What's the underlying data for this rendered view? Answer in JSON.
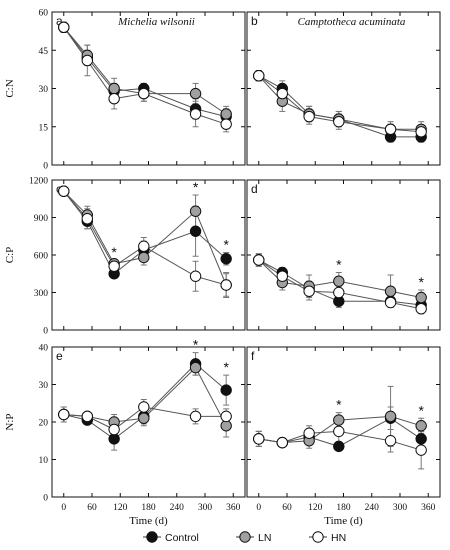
{
  "chart_data": [
    {
      "type": "line",
      "panel_letter": "a",
      "title": "Michelia wilsonii",
      "ylabel": "C:N",
      "xlabel": "",
      "ylim": [
        0,
        60
      ],
      "yticks": [
        0,
        15,
        30,
        45,
        60
      ],
      "xticks": [
        0,
        60,
        120,
        180,
        240,
        300,
        360
      ],
      "series": [
        {
          "name": "Control",
          "x": [
            0,
            50,
            107,
            170,
            280,
            345
          ],
          "y": [
            54,
            42,
            29,
            30,
            22,
            19
          ],
          "err": [
            2,
            3,
            3,
            2,
            4,
            3
          ]
        },
        {
          "name": "LN",
          "x": [
            0,
            50,
            107,
            170,
            280,
            345
          ],
          "y": [
            54,
            43,
            30,
            28,
            28,
            20
          ],
          "err": [
            2,
            4,
            4,
            3,
            4,
            3
          ]
        },
        {
          "name": "HN",
          "x": [
            0,
            50,
            107,
            170,
            280,
            345
          ],
          "y": [
            54,
            41,
            26,
            28,
            20,
            16
          ],
          "err": [
            2,
            6,
            4,
            3,
            5,
            3
          ]
        }
      ],
      "asterisks": []
    },
    {
      "type": "line",
      "panel_letter": "b",
      "title": "Camptotheca acuminata",
      "ylabel": "",
      "xlabel": "",
      "ylim": [
        0,
        60
      ],
      "yticks": [
        0,
        15,
        30,
        45,
        60
      ],
      "xticks": [
        0,
        60,
        120,
        180,
        240,
        300,
        360
      ],
      "series": [
        {
          "name": "Control",
          "x": [
            0,
            50,
            107,
            170,
            280,
            345
          ],
          "y": [
            35,
            30,
            20,
            18,
            11,
            11
          ],
          "err": [
            2,
            3,
            3,
            3,
            2,
            2
          ]
        },
        {
          "name": "LN",
          "x": [
            0,
            50,
            107,
            170,
            280,
            345
          ],
          "y": [
            35,
            25,
            20,
            18,
            14,
            14
          ],
          "err": [
            2,
            4,
            3,
            3,
            3,
            3
          ]
        },
        {
          "name": "HN",
          "x": [
            0,
            50,
            107,
            170,
            280,
            345
          ],
          "y": [
            35,
            28,
            19,
            17,
            14,
            13
          ],
          "err": [
            2,
            3,
            3,
            3,
            2,
            2
          ]
        }
      ],
      "asterisks": []
    },
    {
      "type": "line",
      "panel_letter": "c",
      "title": "",
      "ylabel": "C:P",
      "xlabel": "",
      "ylim": [
        0,
        1200
      ],
      "yticks": [
        0,
        300,
        600,
        900,
        1200
      ],
      "xticks": [
        0,
        60,
        120,
        180,
        240,
        300,
        360
      ],
      "series": [
        {
          "name": "Control",
          "x": [
            0,
            50,
            107,
            170,
            280,
            345
          ],
          "y": [
            1110,
            870,
            450,
            640,
            790,
            570
          ],
          "err": [
            30,
            60,
            30,
            70,
            200,
            50
          ]
        },
        {
          "name": "LN",
          "x": [
            0,
            50,
            107,
            170,
            280,
            345
          ],
          "y": [
            1110,
            920,
            530,
            580,
            950,
            360
          ],
          "err": [
            30,
            70,
            30,
            60,
            130,
            100
          ]
        },
        {
          "name": "HN",
          "x": [
            0,
            50,
            107,
            170,
            280,
            345
          ],
          "y": [
            1110,
            890,
            510,
            670,
            430,
            360
          ],
          "err": [
            30,
            80,
            30,
            70,
            120,
            90
          ]
        }
      ],
      "asterisks": [
        {
          "x": 107,
          "label": "*"
        },
        {
          "x": 280,
          "label": "*"
        },
        {
          "x": 345,
          "label": "*"
        }
      ]
    },
    {
      "type": "line",
      "panel_letter": "d",
      "title": "",
      "ylabel": "",
      "xlabel": "",
      "ylim": [
        0,
        1200
      ],
      "yticks": [
        0,
        300,
        600,
        900,
        1200
      ],
      "xticks": [
        0,
        60,
        120,
        180,
        240,
        300,
        360
      ],
      "series": [
        {
          "name": "Control",
          "x": [
            0,
            50,
            107,
            170,
            280,
            345
          ],
          "y": [
            560,
            460,
            330,
            230,
            230,
            200
          ],
          "err": [
            50,
            40,
            60,
            50,
            40,
            30
          ]
        },
        {
          "name": "LN",
          "x": [
            0,
            50,
            107,
            170,
            280,
            345
          ],
          "y": [
            560,
            380,
            350,
            390,
            310,
            260
          ],
          "err": [
            50,
            60,
            90,
            70,
            130,
            60
          ]
        },
        {
          "name": "HN",
          "x": [
            0,
            50,
            107,
            170,
            280,
            345
          ],
          "y": [
            560,
            430,
            310,
            300,
            220,
            170
          ],
          "err": [
            50,
            50,
            70,
            50,
            40,
            40
          ]
        }
      ],
      "asterisks": [
        {
          "x": 170,
          "label": "*"
        },
        {
          "x": 345,
          "label": "*"
        }
      ]
    },
    {
      "type": "line",
      "panel_letter": "e",
      "title": "",
      "ylabel": "N:P",
      "xlabel": "Time (d)",
      "ylim": [
        0,
        40
      ],
      "yticks": [
        0,
        10,
        20,
        30,
        40
      ],
      "xticks": [
        0,
        60,
        120,
        180,
        240,
        300,
        360
      ],
      "series": [
        {
          "name": "Control",
          "x": [
            0,
            50,
            107,
            170,
            280,
            345
          ],
          "y": [
            22,
            20.5,
            15.5,
            21.5,
            35.5,
            28.5
          ],
          "err": [
            2,
            1,
            3,
            2,
            3,
            4
          ]
        },
        {
          "name": "LN",
          "x": [
            0,
            50,
            107,
            170,
            280,
            345
          ],
          "y": [
            22,
            21.5,
            20,
            21,
            34.5,
            19
          ],
          "err": [
            2,
            1,
            2,
            2,
            2,
            3
          ]
        },
        {
          "name": "HN",
          "x": [
            0,
            50,
            107,
            170,
            280,
            345
          ],
          "y": [
            22,
            21.5,
            18,
            24,
            21.5,
            21.5
          ],
          "err": [
            2,
            1,
            2,
            2,
            2,
            2
          ]
        }
      ],
      "asterisks": [
        {
          "x": 280,
          "label": "*"
        },
        {
          "x": 345,
          "label": "*"
        }
      ]
    },
    {
      "type": "line",
      "panel_letter": "f",
      "title": "",
      "ylabel": "",
      "xlabel": "Time (d)",
      "ylim": [
        0,
        40
      ],
      "yticks": [
        0,
        10,
        20,
        30,
        40
      ],
      "xticks": [
        0,
        60,
        120,
        180,
        240,
        300,
        360
      ],
      "series": [
        {
          "name": "Control",
          "x": [
            0,
            50,
            107,
            170,
            280,
            345
          ],
          "y": [
            15.5,
            14.5,
            16,
            13.5,
            21,
            15.5
          ],
          "err": [
            2,
            1,
            2,
            1,
            3,
            2
          ]
        },
        {
          "name": "LN",
          "x": [
            0,
            50,
            107,
            170,
            280,
            345
          ],
          "y": [
            15.5,
            14.5,
            15,
            20.5,
            21.5,
            19
          ],
          "err": [
            2,
            1,
            2,
            2,
            8,
            2
          ]
        },
        {
          "name": "HN",
          "x": [
            0,
            50,
            107,
            170,
            280,
            345
          ],
          "y": [
            15.5,
            14.5,
            17,
            17.5,
            15,
            12.5
          ],
          "err": [
            2,
            1,
            2,
            3,
            3,
            5
          ]
        }
      ],
      "asterisks": [
        {
          "x": 170,
          "label": "*"
        },
        {
          "x": 345,
          "label": "*"
        }
      ]
    }
  ],
  "legend": {
    "placement": "bottom-center",
    "items": [
      {
        "name": "Control",
        "fill": "#111111"
      },
      {
        "name": "LN",
        "fill": "#a0a0a0"
      },
      {
        "name": "HN",
        "fill": "#ffffff"
      }
    ]
  },
  "colors": {
    "Control": "#111111",
    "LN": "#a0a0a0",
    "HN": "#ffffff",
    "outline": "#111111",
    "line": "#555555"
  }
}
